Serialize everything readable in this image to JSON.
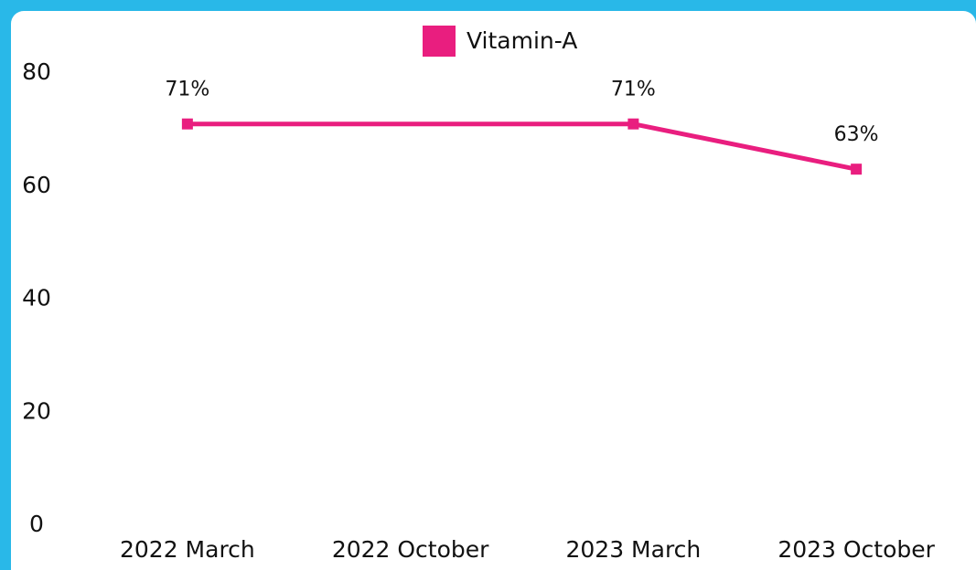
{
  "chart_data": {
    "type": "line",
    "categories": [
      "2022 March",
      "2022 October",
      "2023 March",
      "2023 October"
    ],
    "series": [
      {
        "name": "Vitamin-A",
        "color": "#e91e7f",
        "values": [
          71,
          null,
          71,
          63
        ],
        "value_labels": [
          "71%",
          null,
          "71%",
          "63%"
        ]
      }
    ],
    "ylim": [
      0,
      80
    ],
    "yticks": [
      0,
      20,
      40,
      60,
      80
    ],
    "grid": false,
    "span_gaps": true,
    "legend": "top"
  }
}
